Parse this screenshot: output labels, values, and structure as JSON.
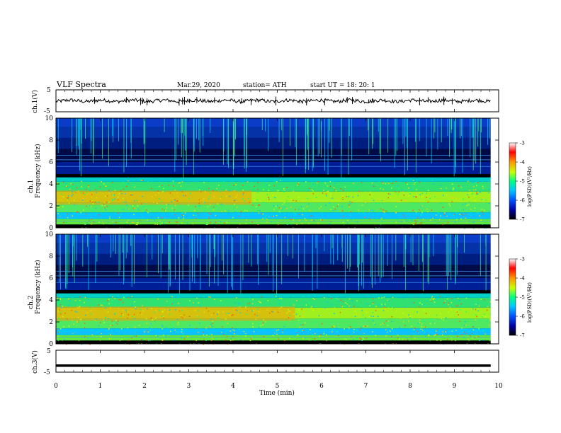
{
  "header": {
    "title": "VLF  Spectra",
    "date": "Mar.29, 2020",
    "station": "station= ATH",
    "start": "start  UT  =    18: 20: 1"
  },
  "chart_data": [
    {
      "type": "line",
      "panel": "ch1-voltage",
      "ylabel": "ch.1(V)",
      "ylim": [
        -5,
        5
      ],
      "yticks": [
        "5",
        "-5"
      ],
      "xlim": [
        0,
        10
      ],
      "baseline_value": 0
    },
    {
      "type": "heatmap",
      "panel": "ch1-spectrogram",
      "ylabel": "ch.1\nFrequency  (kHz)",
      "ylim": [
        0,
        10
      ],
      "yticks": [
        "10",
        "8",
        "6",
        "4",
        "2",
        "0"
      ],
      "xlim": [
        0,
        10
      ],
      "colorbar": {
        "label": "log(PSD)(V²/Hz)",
        "range": [
          -7,
          -3
        ],
        "ticks": [
          "-3",
          "-4",
          "-5",
          "-6",
          "-7"
        ]
      }
    },
    {
      "type": "heatmap",
      "panel": "ch2-spectrogram",
      "ylabel": "ch.2\nFrequency  (kHz)",
      "ylim": [
        0,
        10
      ],
      "yticks": [
        "10",
        "8",
        "6",
        "4",
        "2",
        "0"
      ],
      "xlim": [
        0,
        10
      ],
      "colorbar": {
        "label": "log(PSD)(V²/Hz)",
        "range": [
          -7,
          -3
        ],
        "ticks": [
          "-3",
          "-4",
          "-5",
          "-6",
          "-7"
        ]
      }
    },
    {
      "type": "line",
      "panel": "ch3-voltage",
      "ylabel": "ch.3(V)",
      "ylim": [
        -5,
        5
      ],
      "yticks": [
        "5",
        "-5"
      ],
      "xlim": [
        0,
        10
      ],
      "baseline_value": -2
    }
  ],
  "xaxis": {
    "label": "Time  (min)",
    "ticks": [
      "0",
      "1",
      "2",
      "3",
      "4",
      "5",
      "6",
      "7",
      "8",
      "9",
      "10"
    ]
  },
  "colors": {
    "axis": "#000000",
    "colormap": [
      "#000000",
      "#0000a0",
      "#0050ff",
      "#00c8ff",
      "#00ff80",
      "#c8ff00",
      "#ff9600",
      "#ff0000",
      "#ffffff"
    ]
  }
}
